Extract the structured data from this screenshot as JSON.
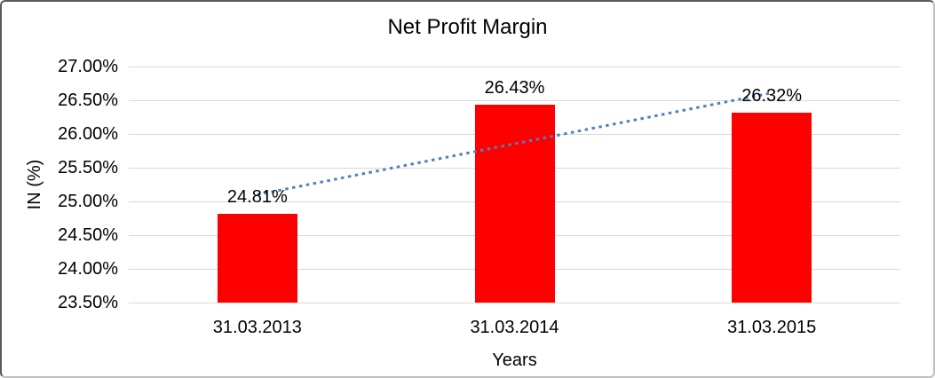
{
  "chart_data": {
    "type": "bar",
    "title": "Net Profit Margin",
    "categories": [
      "31.03.2013",
      "31.03.2014",
      "31.03.2015"
    ],
    "values": [
      24.81,
      26.43,
      26.32
    ],
    "value_labels": [
      "24.81%",
      "26.43%",
      "26.32%"
    ],
    "xlabel": "Years",
    "ylabel": "IN (%)",
    "ylim": [
      23.5,
      27.0
    ],
    "ytick_step": 0.5,
    "ytick_labels": [
      "23.50%",
      "24.00%",
      "24.50%",
      "25.00%",
      "25.50%",
      "26.00%",
      "26.50%",
      "27.00%"
    ],
    "grid": true,
    "legend": "none",
    "bar_color": "#FF0000",
    "gridline_color": "#D9D9D9",
    "text_color": "#000000",
    "trendline": {
      "type": "linear",
      "style": "dotted",
      "color": "#4F81BD",
      "values_at_ends": [
        25.1,
        26.61
      ]
    }
  }
}
